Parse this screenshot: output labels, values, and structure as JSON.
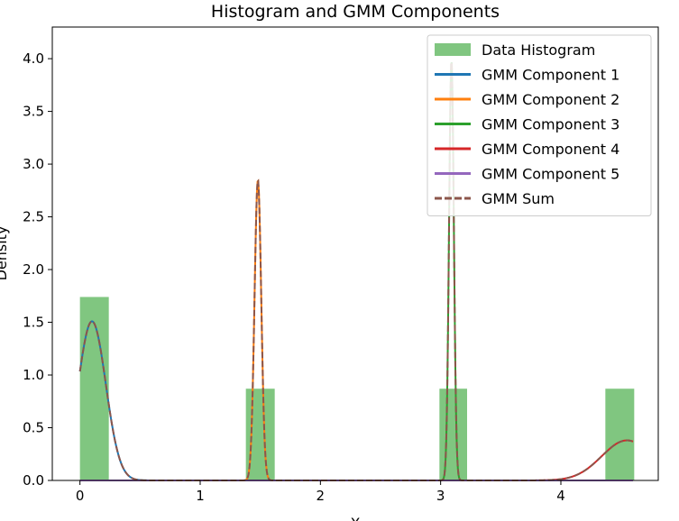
{
  "chart_data": {
    "type": "histogram+line",
    "title": "Histogram and GMM Components",
    "xlabel": "X",
    "ylabel": "Density",
    "xlim": [
      -0.23,
      4.81
    ],
    "ylim": [
      0,
      4.3
    ],
    "xticks": [
      0,
      1,
      2,
      3,
      4
    ],
    "yticks": [
      0.0,
      0.5,
      1.0,
      1.5,
      2.0,
      2.5,
      3.0,
      3.5,
      4.0
    ],
    "grid": false,
    "legend_position": "top-right",
    "histogram": {
      "name": "Data Histogram",
      "color": "#2ca02c",
      "bins": [
        {
          "x0": 0.0,
          "x1": 0.24,
          "density": 1.74
        },
        {
          "x0": 1.38,
          "x1": 1.62,
          "density": 0.87
        },
        {
          "x0": 2.99,
          "x1": 3.22,
          "density": 0.87
        },
        {
          "x0": 4.37,
          "x1": 4.61,
          "density": 0.87
        }
      ]
    },
    "components": [
      {
        "name": "GMM Component 1",
        "color": "#1f77b4",
        "style": "solid",
        "mean": 0.1,
        "sigma": 0.115,
        "weight": 0.435
      },
      {
        "name": "GMM Component 2",
        "color": "#ff7f0e",
        "style": "solid",
        "mean": 1.48,
        "sigma": 0.028,
        "weight": 0.2
      },
      {
        "name": "GMM Component 3",
        "color": "#2ca02c",
        "style": "solid",
        "mean": 3.09,
        "sigma": 0.02,
        "weight": 0.2
      },
      {
        "name": "GMM Component 4",
        "color": "#d62728",
        "style": "solid",
        "mean": 4.55,
        "sigma": 0.21,
        "weight": 0.2
      },
      {
        "name": "GMM Component 5",
        "color": "#9467bd",
        "style": "solid",
        "mean": 4.55,
        "sigma": 0.21,
        "weight": 0.0
      }
    ],
    "sum": {
      "name": "GMM Sum",
      "color": "#8c564b",
      "style": "dashed"
    },
    "x_range": [
      0.0,
      4.6
    ]
  }
}
